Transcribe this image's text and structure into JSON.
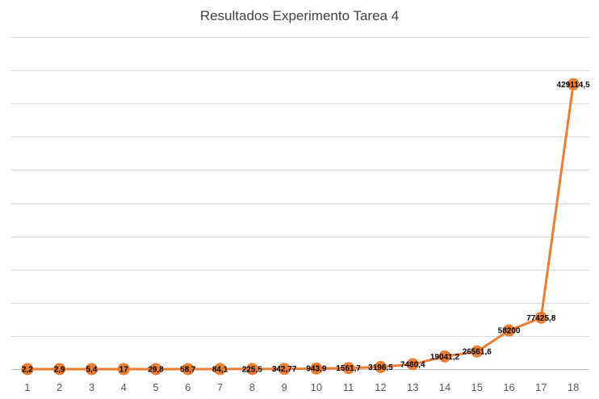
{
  "chart_data": {
    "type": "line",
    "title": "Resultados Experimento Tarea 4",
    "xlabel": "",
    "ylabel": "",
    "x": [
      1,
      2,
      3,
      4,
      5,
      6,
      7,
      8,
      9,
      10,
      11,
      12,
      13,
      14,
      15,
      16,
      17,
      18
    ],
    "categories": [
      "1",
      "2",
      "3",
      "4",
      "5",
      "6",
      "7",
      "8",
      "9",
      "10",
      "11",
      "12",
      "13",
      "14",
      "15",
      "16",
      "17",
      "18"
    ],
    "series": [
      {
        "values": [
          2.2,
          2.9,
          5.4,
          17,
          29.8,
          58.7,
          84.1,
          225.5,
          342.77,
          943.9,
          1561.7,
          3196.5,
          7480.4,
          19041.2,
          26561.6,
          58200,
          77425.8,
          429114.5
        ],
        "labels": [
          "2,2",
          "2,9",
          "5,4",
          "17",
          "29,8",
          "58,7",
          "84,1",
          "225,5",
          "342,77",
          "943,9",
          "1561,7",
          "3196,5",
          "7480,4",
          "19041,2",
          "26561,6",
          "58200",
          "77425,8",
          "429114,5"
        ]
      }
    ],
    "ylim": [
      0,
      500000
    ],
    "y_gridlines": 10,
    "y_tick_labels_shown": false,
    "grid": true,
    "legend": "none",
    "colors": {
      "series": "#ed7d31",
      "grid": "#d9d9d9"
    }
  }
}
